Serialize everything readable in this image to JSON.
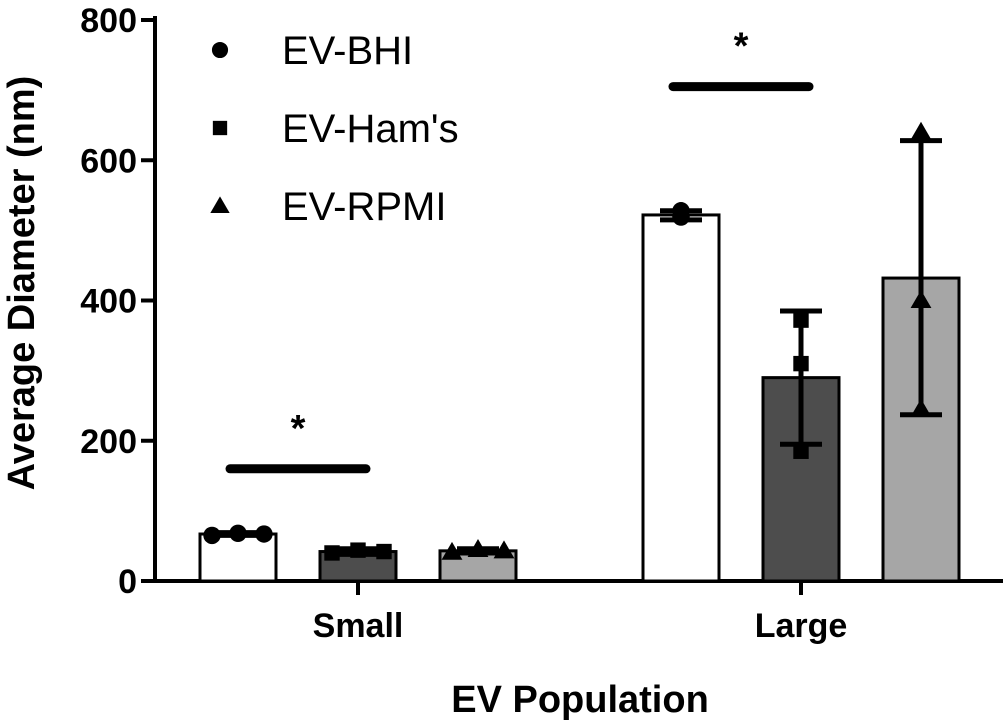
{
  "chart_data": {
    "type": "bar",
    "xlabel": "EV Population",
    "ylabel": "Average Diameter (nm)",
    "ylim": [
      0,
      800
    ],
    "yticks": [
      0,
      200,
      400,
      600,
      800
    ],
    "categories": [
      "Small",
      "Large"
    ],
    "series": [
      {
        "name": "EV-BHI",
        "marker": "circle",
        "color": "#ffffff",
        "values": [
          67,
          522
        ],
        "error_low": [
          65,
          515
        ],
        "error_high": [
          69,
          528
        ],
        "points": [
          [
            65,
            68,
            67
          ],
          [
            519,
            528,
            520
          ]
        ]
      },
      {
        "name": "EV-Ham's",
        "marker": "square",
        "color": "#4d4d4d",
        "values": [
          42,
          290
        ],
        "error_low": [
          38,
          195
        ],
        "error_high": [
          46,
          385
        ],
        "points": [
          [
            40,
            44,
            42
          ],
          [
            185,
            310,
            372
          ]
        ]
      },
      {
        "name": "EV-RPMI",
        "marker": "triangle",
        "color": "#a6a6a6",
        "values": [
          43,
          432
        ],
        "error_low": [
          40,
          237
        ],
        "error_high": [
          46,
          628
        ],
        "points": [
          [
            41,
            45,
            43
          ],
          [
            245,
            400,
            640
          ]
        ]
      }
    ],
    "significance": [
      {
        "category": "Small",
        "label": "*",
        "y": 160
      },
      {
        "category": "Large",
        "label": "*",
        "y": 705
      }
    ],
    "legend_position": "top-left"
  }
}
